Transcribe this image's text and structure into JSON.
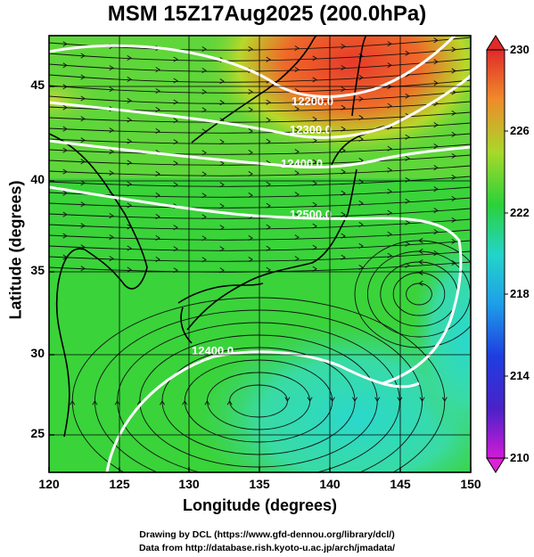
{
  "title": "MSM 15Z17Aug2025 (200.0hPa)",
  "xlabel": "Longitude (degrees)",
  "ylabel": "Latitude  (degrees)",
  "x_ticks": [
    "120",
    "125",
    "130",
    "135",
    "140",
    "145",
    "150"
  ],
  "y_ticks": [
    "25",
    "30",
    "35",
    "40",
    "45"
  ],
  "colorbar_ticks": [
    "230",
    "226",
    "222",
    "218",
    "214",
    "210"
  ],
  "contours": [
    {
      "label": "12200.0"
    },
    {
      "label": "12300.0"
    },
    {
      "label": "12400.0"
    },
    {
      "label": "12500.0"
    },
    {
      "label": "12400.0"
    }
  ],
  "credits": {
    "line1": "Drawing by DCL (https://www.gfd-dennou.org/library/dcl/)",
    "line2": "Data from http://database.rish.kyoto-u.ac.jp/arch/jmadata/"
  },
  "chart_data": {
    "type": "heatmap",
    "x_range": [
      120,
      150
    ],
    "y_range": [
      23,
      48
    ],
    "colorbar_range": [
      210,
      230
    ],
    "colors": {
      "high": "#e8362a",
      "mid": "#2fd12f",
      "low": "#29d6c8",
      "min": "#d21ad8"
    }
  }
}
